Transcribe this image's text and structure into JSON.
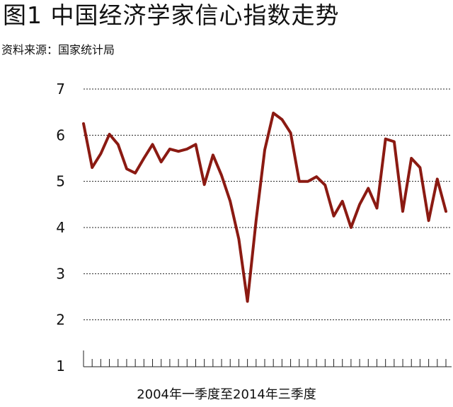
{
  "title": "图1 中国经济学家信心指数走势",
  "source": "资料来源：国家统计局",
  "chart_data": {
    "type": "line",
    "title": "图1 中国经济学家信心指数走势",
    "xlabel": "2004年一季度至2014年三季度",
    "ylabel": "",
    "ylim": [
      1,
      7
    ],
    "yticks": [
      "1",
      "2",
      "3",
      "4",
      "5",
      "6",
      "7"
    ],
    "grid": true,
    "line_color": "#8B1A12",
    "series": [
      {
        "values": [
          6.25,
          5.3,
          5.6,
          6.02,
          5.8,
          5.27,
          5.18,
          5.5,
          5.8,
          5.42,
          5.7,
          5.65,
          5.7,
          5.8,
          4.93,
          5.57,
          5.13,
          4.57,
          3.75,
          2.4,
          4.15,
          5.68,
          6.48,
          6.34,
          6.05,
          5.0,
          5.0,
          5.1,
          4.92,
          4.25,
          4.57,
          4.0,
          4.5,
          4.85,
          4.42,
          5.92,
          5.86,
          4.35,
          5.5,
          5.3,
          4.15,
          5.05,
          4.35
        ]
      }
    ]
  }
}
